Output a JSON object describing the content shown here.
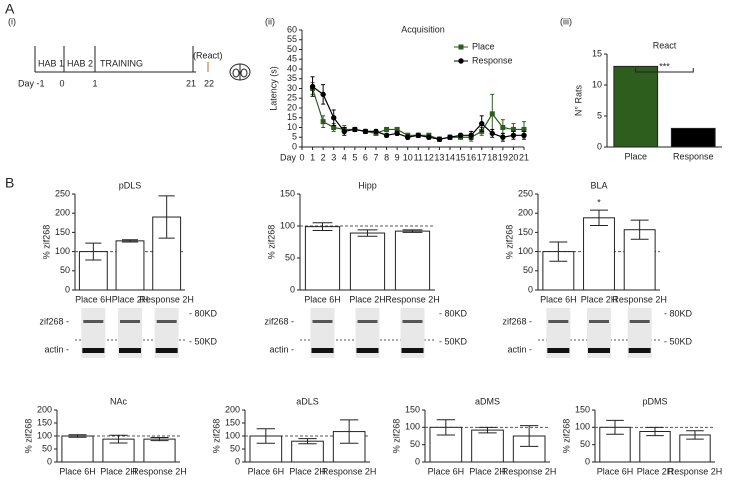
{
  "panel_labels": [
    "A",
    "B"
  ],
  "timeline": {
    "label": "(i)",
    "day_labels": [
      "Day -1",
      "0",
      "1",
      "21",
      "22"
    ],
    "phases": [
      "HAB 1",
      "HAB 2",
      "TRAINING",
      "(React)"
    ]
  },
  "chart_data": [
    {
      "type": "line",
      "label": "(ii)",
      "title": "Acquisition",
      "x_label": "Day",
      "y_label": "Latency (s)",
      "x": [
        1,
        2,
        3,
        4,
        5,
        6,
        7,
        8,
        9,
        10,
        11,
        12,
        13,
        14,
        15,
        16,
        17,
        18,
        19,
        20,
        21
      ],
      "xlim": [
        0,
        21
      ],
      "xticks": [
        0,
        1,
        2,
        3,
        4,
        5,
        6,
        7,
        8,
        9,
        10,
        11,
        12,
        13,
        14,
        15,
        16,
        17,
        18,
        19,
        20,
        21
      ],
      "ylim": [
        0,
        60
      ],
      "yticks": [
        0,
        5,
        10,
        15,
        20,
        25,
        30,
        35,
        40,
        45,
        50,
        55,
        60
      ],
      "legend": "upper right",
      "series": [
        {
          "name": "Place",
          "color": "#2e5e1e",
          "marker": "square",
          "values": [
            30,
            13,
            10,
            9,
            9,
            8,
            7,
            9,
            9,
            6,
            6,
            6,
            4,
            5,
            5,
            5,
            8,
            17,
            10,
            9,
            9
          ],
          "errors": [
            3,
            3,
            2,
            2,
            1,
            1,
            1,
            1,
            1,
            1,
            1,
            1,
            1,
            1,
            1,
            2,
            2,
            10,
            4,
            3,
            4
          ]
        },
        {
          "name": "Response",
          "color": "#000000",
          "marker": "circle",
          "values": [
            31,
            27,
            15,
            8,
            9,
            8,
            8,
            6,
            7,
            5,
            6,
            5,
            4,
            5,
            6,
            6,
            12,
            7,
            5,
            6,
            6
          ],
          "errors": [
            5,
            5,
            4,
            2,
            1,
            1,
            1,
            1,
            1,
            1,
            1,
            1,
            1,
            1,
            1,
            2,
            4,
            2,
            2,
            2,
            2
          ]
        }
      ]
    },
    {
      "type": "bar",
      "label": "(iii)",
      "title": "React",
      "y_label": "N° Rats",
      "categories": [
        "Place",
        "Response"
      ],
      "values": [
        13,
        3
      ],
      "colors": [
        "#2e5e1e",
        "#000000"
      ],
      "ylim": [
        0,
        15
      ],
      "yticks": [
        0,
        5,
        10,
        15
      ],
      "annotation": "***"
    },
    {
      "type": "bar",
      "title": "pDLS",
      "y_label": "% zif268",
      "categories": [
        "Place 6H",
        "Place 2H",
        "Response 2H"
      ],
      "values": [
        100,
        128,
        190
      ],
      "errors": [
        22,
        3,
        55
      ],
      "ylim": [
        0,
        250
      ],
      "yticks": [
        0,
        50,
        100,
        150,
        200,
        250
      ],
      "hline": 100,
      "blot_labels": [
        "zif268 -",
        "actin -",
        "- 80KD",
        "- 50KD"
      ]
    },
    {
      "type": "bar",
      "title": "Hipp",
      "y_label": "% zif268",
      "categories": [
        "Place 6H",
        "Place 2H",
        "Response 2H"
      ],
      "values": [
        99,
        89,
        92
      ],
      "errors": [
        6,
        5,
        2
      ],
      "ylim": [
        0,
        150
      ],
      "yticks": [
        0,
        50,
        100,
        150
      ],
      "hline": 100,
      "blot_labels": [
        "zif268 -",
        "actin -",
        "- 80KD",
        "- 50KD"
      ]
    },
    {
      "type": "bar",
      "title": "BLA",
      "y_label": "% zif268",
      "categories": [
        "Place 6H",
        "Place 2H",
        "Response 2H"
      ],
      "values": [
        100,
        188,
        157
      ],
      "errors": [
        25,
        20,
        25
      ],
      "ylim": [
        0,
        250
      ],
      "yticks": [
        0,
        50,
        100,
        150,
        200,
        250
      ],
      "hline": 100,
      "annotation": "*",
      "blot_labels": [
        "zif268 -",
        "actin -",
        "- 80KD",
        "- 50KD"
      ]
    },
    {
      "type": "bar",
      "title": "NAc",
      "y_label": "% zif268",
      "categories": [
        "Place 6H",
        "Place 2H",
        "Response 2H"
      ],
      "values": [
        100,
        88,
        88
      ],
      "errors": [
        5,
        15,
        6
      ],
      "ylim": [
        0,
        200
      ],
      "yticks": [
        0,
        50,
        100,
        150,
        200
      ],
      "hline": 100
    },
    {
      "type": "bar",
      "title": "aDLS",
      "y_label": "% zif268",
      "categories": [
        "Place 6H",
        "Place 2H",
        "Response 2H"
      ],
      "values": [
        100,
        80,
        117
      ],
      "errors": [
        28,
        10,
        45
      ],
      "ylim": [
        0,
        200
      ],
      "yticks": [
        0,
        50,
        100,
        150,
        200
      ],
      "hline": 100
    },
    {
      "type": "bar",
      "title": "aDMS",
      "y_label": "% zif268",
      "categories": [
        "Place 6H",
        "Place 2H",
        "Response 2H"
      ],
      "values": [
        100,
        92,
        75
      ],
      "errors": [
        22,
        8,
        30
      ],
      "ylim": [
        0,
        150
      ],
      "yticks": [
        0,
        50,
        100,
        150
      ],
      "hline": 100
    },
    {
      "type": "bar",
      "title": "pDMS",
      "y_label": "% zif268",
      "categories": [
        "Place 6H",
        "Place 2H",
        "Response 2H"
      ],
      "values": [
        100,
        88,
        78
      ],
      "errors": [
        20,
        12,
        12
      ],
      "ylim": [
        0,
        150
      ],
      "yticks": [
        0,
        50,
        100,
        150
      ],
      "hline": 100
    }
  ]
}
